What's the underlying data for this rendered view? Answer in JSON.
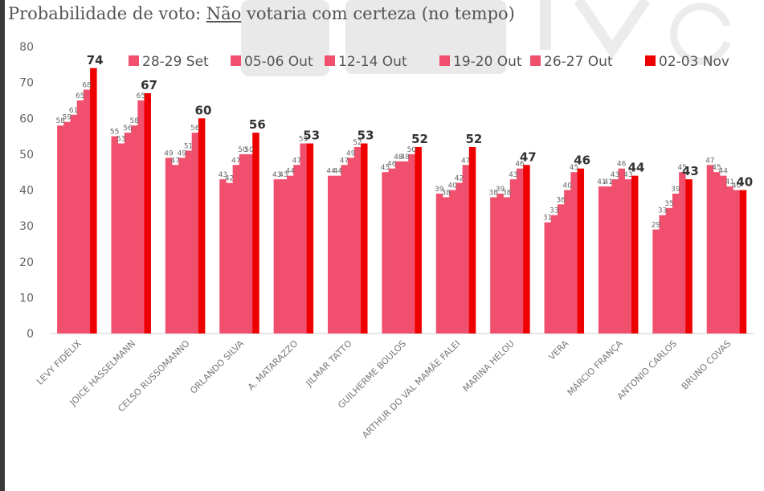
{
  "chart_data": {
    "type": "bar",
    "title_parts": {
      "before": "Probabilidade de voto: ",
      "underlined": "Não",
      "after": " votaria com certeza (no tempo)"
    },
    "xlabel": "",
    "ylabel": "",
    "ylim": [
      0,
      80
    ],
    "yticks": [
      0,
      10,
      20,
      30,
      40,
      50,
      60,
      70,
      80
    ],
    "grid": false,
    "legend_position": "top-right",
    "categories": [
      "LEVY FIDÉLIX",
      "JOICE HASSELMANN",
      "CELSO RUSSOMANNO",
      "ORLANDO SILVA",
      "A. MATARAZZO",
      "JILMAR TATTO",
      "GUILHERME BOULOS",
      "ARTHUR DO VAL MAMÃE FALEI",
      "MARINA HELOU",
      "VERA",
      "MÁRCIO FRANÇA",
      "ANTONIO CARLOS",
      "BRUNO COVAS"
    ],
    "series": [
      {
        "name": "28-29 Set",
        "color": "#f0506e",
        "values": [
          58,
          55,
          49,
          43,
          43,
          44,
          45,
          39,
          38,
          31,
          41,
          29,
          47
        ]
      },
      {
        "name": "05-06 Out",
        "color": "#f0506e",
        "values": [
          59,
          53,
          47,
          42,
          43,
          44,
          46,
          38,
          39,
          33,
          41,
          33,
          45
        ]
      },
      {
        "name": "12-14 Out",
        "color": "#f0506e",
        "values": [
          61,
          56,
          49,
          47,
          44,
          47,
          48,
          40,
          38,
          36,
          43,
          35,
          44
        ]
      },
      {
        "name": "19-20 Out",
        "color": "#f0506e",
        "values": [
          65,
          58,
          51,
          50,
          47,
          49,
          48,
          42,
          43,
          40,
          46,
          39,
          41
        ]
      },
      {
        "name": "26-27 Out",
        "color": "#f0506e",
        "values": [
          68,
          65,
          56,
          50,
          53,
          52,
          50,
          47,
          46,
          45,
          43,
          45,
          40
        ]
      },
      {
        "name": "02-03 Nov",
        "color": "#ee0000",
        "values": [
          74,
          67,
          60,
          56,
          53,
          53,
          52,
          52,
          47,
          46,
          44,
          43,
          40
        ]
      }
    ]
  }
}
